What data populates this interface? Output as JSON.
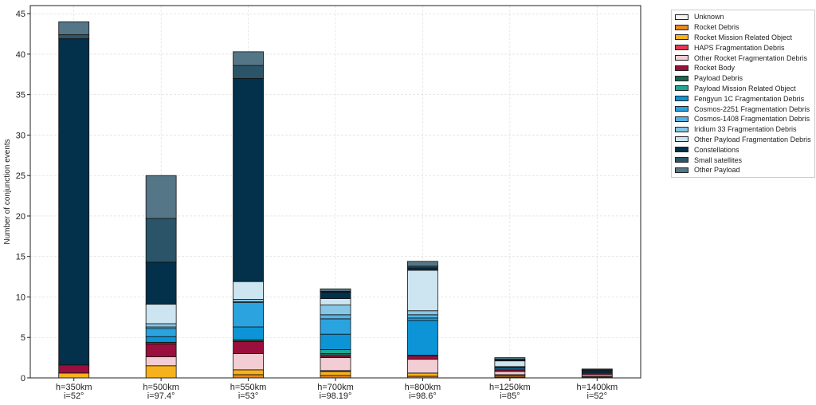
{
  "chart_data": {
    "type": "bar",
    "stacked": true,
    "ylabel": "Number of conjunction events",
    "xlabel": "",
    "title": "",
    "ylim": [
      0,
      46
    ],
    "yticks": [
      0,
      5,
      10,
      15,
      20,
      25,
      30,
      35,
      40,
      45
    ],
    "grid": true,
    "legend_position": "outside-right",
    "categories": [
      [
        "h=350km",
        "i=52°"
      ],
      [
        "h=500km",
        "i=97.4°"
      ],
      [
        "h=550km",
        "i=53°"
      ],
      [
        "h=700km",
        "i=98.19°"
      ],
      [
        "h=800km",
        "i=98.6°"
      ],
      [
        "h=1250km",
        "i=85°"
      ],
      [
        "h=1400km",
        "i=52°"
      ]
    ],
    "series": [
      {
        "name": "Unknown",
        "color": "#f7f1f1",
        "values": [
          0,
          0,
          0,
          0,
          0,
          0.1,
          0.1
        ]
      },
      {
        "name": "Rocket Debris",
        "color": "#e8891c",
        "values": [
          0,
          0,
          0.4,
          0.3,
          0.2,
          0.2,
          0.1
        ]
      },
      {
        "name": "Rocket Mission Related Object",
        "color": "#f5b21d",
        "values": [
          0.6,
          1.5,
          0.6,
          0.5,
          0.4,
          0.1,
          0
        ]
      },
      {
        "name": "HAPS Fragmentation Debris",
        "color": "#e23a52",
        "values": [
          0,
          0,
          0,
          0.1,
          0,
          0,
          0
        ]
      },
      {
        "name": "Other Rocket Fragmentation Debris",
        "color": "#f2cdd3",
        "values": [
          0,
          1.1,
          2.0,
          1.6,
          1.7,
          0.4,
          0.2
        ]
      },
      {
        "name": "Rocket Body",
        "color": "#9a0f3c",
        "values": [
          1.0,
          1.6,
          1.5,
          0.2,
          0.4,
          0.2,
          0.2
        ]
      },
      {
        "name": "Payload Debris",
        "color": "#1c6650",
        "values": [
          0,
          0.2,
          0.2,
          0.3,
          0.1,
          0,
          0
        ]
      },
      {
        "name": "Payload Mission Related Object",
        "color": "#23a594",
        "values": [
          0,
          0,
          0,
          0.5,
          0,
          0,
          0
        ]
      },
      {
        "name": "Fengyun 1C Fragmentation Debris",
        "color": "#0c94d6",
        "values": [
          0,
          0.7,
          1.6,
          1.9,
          4.3,
          0.2,
          0
        ]
      },
      {
        "name": "Cosmos-2251 Fragmentation Debris",
        "color": "#2ba3de",
        "values": [
          0,
          1.0,
          3.0,
          1.9,
          0.3,
          0.1,
          0
        ]
      },
      {
        "name": "Cosmos-1408 Fragmentation Debris",
        "color": "#56b3e3",
        "values": [
          0,
          0.2,
          0.1,
          0.5,
          0.4,
          0,
          0
        ]
      },
      {
        "name": "Iridium 33 Fragmentation Debris",
        "color": "#86c6e6",
        "values": [
          0,
          0.4,
          0.3,
          1.2,
          0.5,
          0.1,
          0
        ]
      },
      {
        "name": "Other Payload Fragmentation Debris",
        "color": "#cce5f0",
        "values": [
          0,
          2.4,
          2.2,
          0.8,
          5.0,
          0.7,
          0
        ]
      },
      {
        "name": "Constellations",
        "color": "#03304a",
        "values": [
          40.3,
          5.2,
          25.1,
          0.8,
          0.3,
          0.1,
          0.3
        ]
      },
      {
        "name": "Small satellites",
        "color": "#2b5468",
        "values": [
          0.5,
          5.4,
          1.6,
          0.1,
          0.2,
          0.1,
          0.1
        ]
      },
      {
        "name": "Other Payload",
        "color": "#557686",
        "values": [
          1.6,
          5.3,
          1.7,
          0.3,
          0.6,
          0.2,
          0.1
        ]
      }
    ]
  }
}
